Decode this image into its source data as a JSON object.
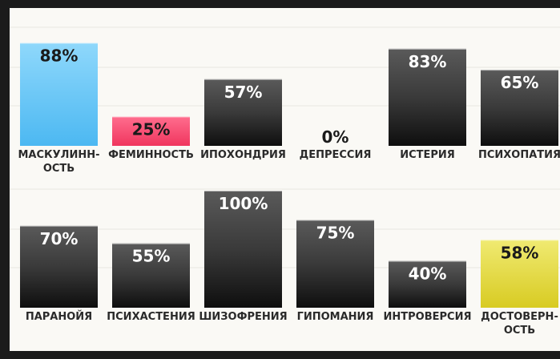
{
  "chart_data": [
    {
      "type": "bar",
      "categories": [
        "МАСКУЛИНН-|ОСТЬ",
        "ФЕМИННОСТЬ",
        "ИПОХОНДРИЯ",
        "ДЕПРЕССИЯ",
        "ИСТЕРИЯ",
        "ПСИХОПАТИЯ"
      ],
      "values": [
        88,
        25,
        57,
        0,
        83,
        65
      ],
      "value_labels": [
        "88%",
        "25%",
        "57%",
        "0%",
        "83%",
        "65%"
      ],
      "ylim": [
        0,
        100
      ],
      "colors": [
        "#5fc4f5",
        "#f2496f",
        "#2a2a2a",
        "#2a2a2a",
        "#2a2a2a",
        "#2a2a2a"
      ],
      "label_colors": [
        "#1a1a1a",
        "#1a1a1a",
        "#ffffff",
        "#1a1a1a",
        "#ffffff",
        "#ffffff"
      ]
    },
    {
      "type": "bar",
      "categories": [
        "ПАРАНОЙЯ",
        "ПСИХАСТЕНИЯ",
        "ШИЗОФРЕНИЯ",
        "ГИПОМАНИЯ",
        "ИНТРОВЕРСИЯ",
        "ДОСТОВЕРН-|ОСТЬ"
      ],
      "values": [
        70,
        55,
        100,
        75,
        40,
        58
      ],
      "value_labels": [
        "70%",
        "55%",
        "100%",
        "75%",
        "40%",
        "58%"
      ],
      "ylim": [
        0,
        100
      ],
      "colors": [
        "#2a2a2a",
        "#2a2a2a",
        "#2a2a2a",
        "#2a2a2a",
        "#2a2a2a",
        "#e0d43a"
      ],
      "label_colors": [
        "#ffffff",
        "#ffffff",
        "#ffffff",
        "#ffffff",
        "#ffffff",
        "#1a1a1a"
      ]
    }
  ]
}
